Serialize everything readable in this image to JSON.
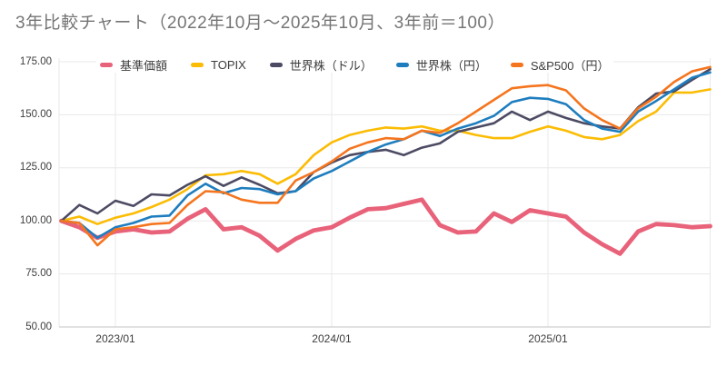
{
  "title": "3年比較チャート（2022年10月〜2025年10月、3年前＝100）",
  "chart_data": {
    "type": "line",
    "title": "3年比較チャート（2022年10月〜2025年10月、3年前＝100）",
    "x": [
      "2022/10",
      "2022/11",
      "2022/12",
      "2023/01",
      "2023/02",
      "2023/03",
      "2023/04",
      "2023/05",
      "2023/06",
      "2023/07",
      "2023/08",
      "2023/09",
      "2023/10",
      "2023/11",
      "2023/12",
      "2024/01",
      "2024/02",
      "2024/03",
      "2024/04",
      "2024/05",
      "2024/06",
      "2024/07",
      "2024/08",
      "2024/09",
      "2024/10",
      "2024/11",
      "2024/12",
      "2025/01",
      "2025/02",
      "2025/03",
      "2025/04",
      "2025/05",
      "2025/06",
      "2025/07",
      "2025/08",
      "2025/09",
      "2025/10"
    ],
    "baseline_note": "3年前＝100",
    "ylim": [
      50,
      175
    ],
    "y_ticks": [
      "175.00",
      "150.00",
      "125.00",
      "100.00",
      "75.00",
      "50.00"
    ],
    "y_tick_values": [
      175,
      150,
      125,
      100,
      75,
      50
    ],
    "x_tick_labels": [
      {
        "label": "2023/01",
        "month_index": 3
      },
      {
        "label": "2024/01",
        "month_index": 15
      },
      {
        "label": "2025/01",
        "month_index": 27
      }
    ],
    "grid": true,
    "legend_position": "top",
    "series": [
      {
        "id": "kijun-kagaku",
        "name": "基準価額",
        "color": "#e8627a",
        "thick": true,
        "values": [
          100,
          97,
          92,
          95,
          96,
          94.5,
          95,
          101,
          105.5,
          96,
          97,
          93,
          86,
          91.5,
          95.5,
          97,
          101.5,
          105.5,
          106,
          108,
          110,
          98,
          94.5,
          95,
          103.5,
          99.5,
          105,
          103.5,
          102,
          94.5,
          89,
          84.5,
          95,
          98.5,
          98,
          97,
          97.5
        ]
      },
      {
        "id": "topix",
        "name": "TOPIX",
        "color": "#fbbc04",
        "thick": false,
        "values": [
          100,
          102,
          98.5,
          101.5,
          103.5,
          106.5,
          110,
          115,
          121.5,
          122,
          123.5,
          122,
          117.5,
          122,
          131,
          137,
          140.5,
          142.5,
          144,
          143.5,
          144.5,
          142.5,
          142.5,
          140.5,
          139,
          139,
          142,
          144.5,
          142.5,
          139.5,
          138.5,
          140.5,
          147,
          151.5,
          160.5,
          160.5,
          162
        ]
      },
      {
        "id": "sekaikabu-doru",
        "name": "世界株（ドル）",
        "color": "#4c4b63",
        "thick": false,
        "values": [
          100,
          107.5,
          103.5,
          109.5,
          107,
          112.5,
          112,
          117,
          121,
          116.5,
          120.5,
          117,
          113,
          114,
          123,
          127.5,
          131,
          132.5,
          133.5,
          131,
          134.5,
          136.5,
          142,
          144,
          146,
          151.5,
          147.5,
          151.5,
          148.5,
          146,
          144.5,
          143.5,
          153.5,
          160,
          161,
          166.5,
          171.5
        ]
      },
      {
        "id": "sekaikabu-en",
        "name": "世界株（円）",
        "color": "#1e7dbe",
        "thick": false,
        "values": [
          100,
          99,
          92,
          97,
          99,
          102,
          102.5,
          112,
          117.5,
          113,
          115.5,
          115,
          112.5,
          114,
          120,
          123.5,
          128,
          132.5,
          136,
          138.5,
          142.5,
          140,
          143.5,
          146,
          149.5,
          156,
          158,
          157.5,
          155,
          147.5,
          143.5,
          142,
          151.5,
          156.5,
          162,
          167.5,
          170
        ]
      },
      {
        "id": "sp500-en",
        "name": "S&P500（円）",
        "color": "#f5751e",
        "thick": false,
        "values": [
          100,
          99,
          88.5,
          96,
          97,
          98.5,
          99,
          107.5,
          114,
          113.5,
          110,
          108.5,
          108.5,
          119,
          123,
          128,
          134,
          137,
          139,
          138.5,
          142.5,
          141.5,
          146,
          151.5,
          157,
          162.5,
          163.5,
          164,
          161.5,
          153,
          147.5,
          143.5,
          153,
          158.5,
          165.5,
          170.5,
          172.5
        ]
      }
    ],
    "colors": {
      "gridline": "#e8e8e8",
      "axis_line": "#cfcfcf",
      "title_text": "#757575",
      "tick_text": "#3d3d3d"
    }
  }
}
